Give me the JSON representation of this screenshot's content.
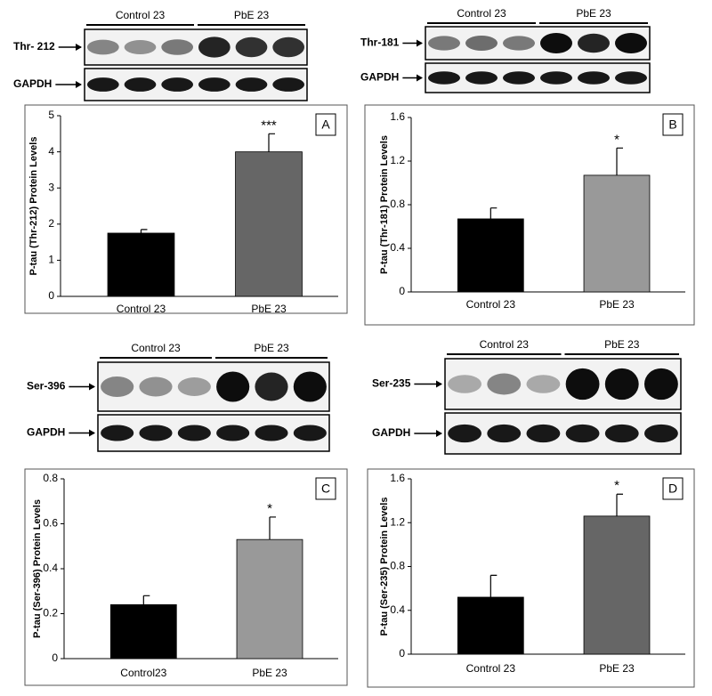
{
  "chart_data": [
    {
      "type": "bar",
      "panel": "A",
      "ylabel": "P-tau (Thr-212) Protein Levels",
      "categories": [
        "Control 23",
        "PbE 23"
      ],
      "values": [
        1.75,
        4.0
      ],
      "errors": [
        0.1,
        0.5
      ],
      "colors": [
        "#000000",
        "#666666"
      ],
      "annotation": "***",
      "ylim": [
        0,
        5
      ],
      "yticks": [
        0,
        1,
        2,
        3,
        4,
        5
      ]
    },
    {
      "type": "bar",
      "panel": "B",
      "ylabel": "P-tau (Thr-181) Protein Levels",
      "categories": [
        "Control 23",
        "PbE 23"
      ],
      "values": [
        0.67,
        1.07
      ],
      "errors": [
        0.1,
        0.25
      ],
      "colors": [
        "#000000",
        "#999999"
      ],
      "annotation": "*",
      "ylim": [
        0,
        1.6
      ],
      "yticks": [
        0,
        0.4,
        0.8,
        1.2,
        1.6
      ]
    },
    {
      "type": "bar",
      "panel": "C",
      "ylabel": "P-tau (Ser-396) Protein Levels",
      "categories": [
        "Control23",
        "PbE 23"
      ],
      "values": [
        0.24,
        0.53
      ],
      "errors": [
        0.04,
        0.1
      ],
      "colors": [
        "#000000",
        "#999999"
      ],
      "annotation": "*",
      "ylim": [
        0,
        0.8
      ],
      "yticks": [
        0,
        0.2,
        0.4,
        0.6,
        0.8
      ]
    },
    {
      "type": "bar",
      "panel": "D",
      "ylabel": "P-tau (Ser-235) Protein Levels",
      "categories": [
        "Control 23",
        "PbE 23"
      ],
      "values": [
        0.52,
        1.26
      ],
      "errors": [
        0.2,
        0.2
      ],
      "colors": [
        "#000000",
        "#666666"
      ],
      "annotation": "*",
      "ylim": [
        0,
        1.6
      ],
      "yticks": [
        0,
        0.4,
        0.8,
        1.2,
        1.6
      ]
    }
  ],
  "blots": [
    {
      "groups": [
        "Control 23",
        "PbE 23"
      ],
      "rows": [
        "Thr- 212",
        "GAPDH"
      ]
    },
    {
      "groups": [
        "Control 23",
        "PbE 23"
      ],
      "rows": [
        "Thr-181",
        "GAPDH"
      ]
    },
    {
      "groups": [
        "Control 23",
        "PbE 23"
      ],
      "rows": [
        "Ser-396",
        "GAPDH"
      ]
    },
    {
      "groups": [
        "Control 23",
        "PbE 23"
      ],
      "rows": [
        "Ser-235",
        "GAPDH"
      ]
    }
  ]
}
